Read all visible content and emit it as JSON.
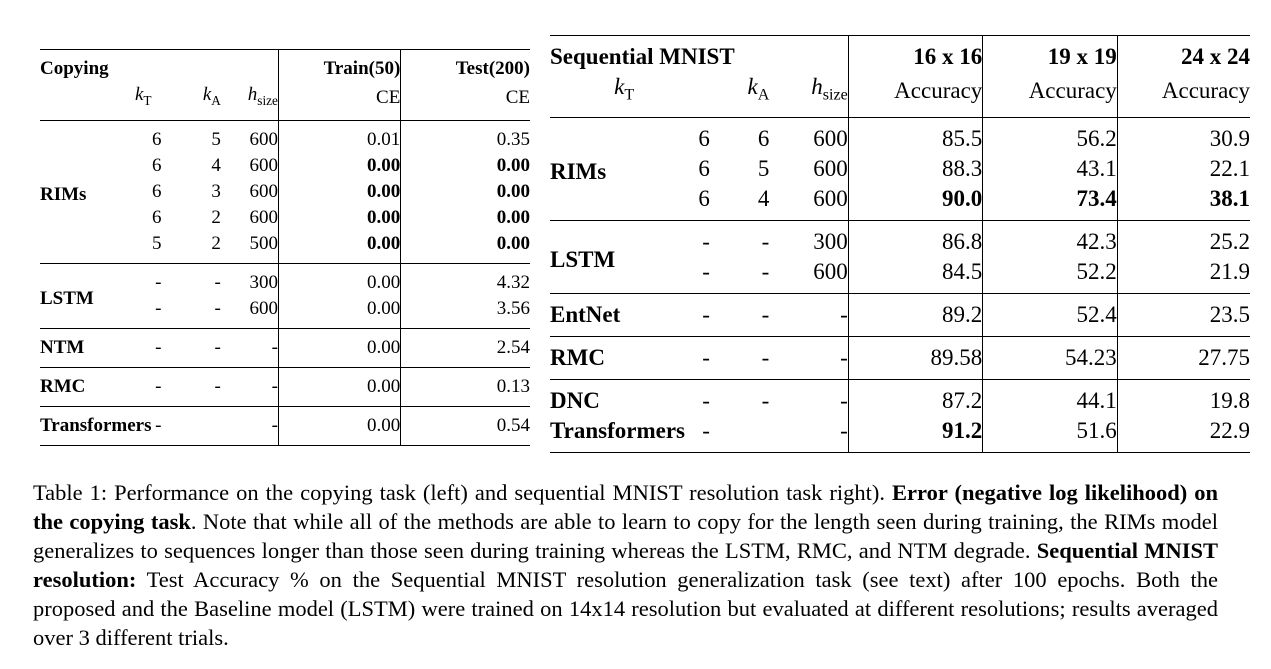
{
  "left_table": {
    "title": "Copying",
    "col_kt": "k",
    "col_kt_sub": "T",
    "col_ka": "k",
    "col_ka_sub": "A",
    "col_h": "h",
    "col_h_sub": "size",
    "train_label": "Train(50)",
    "test_label": "Test(200)",
    "metric": "CE",
    "groups": [
      {
        "name": "RIMs",
        "rows": [
          {
            "kt": "6",
            "ka": "5",
            "h": "600",
            "train": "0.01",
            "test": "0.35",
            "train_bold": false,
            "test_bold": false
          },
          {
            "kt": "6",
            "ka": "4",
            "h": "600",
            "train": "0.00",
            "test": "0.00",
            "train_bold": true,
            "test_bold": true
          },
          {
            "kt": "6",
            "ka": "3",
            "h": "600",
            "train": "0.00",
            "test": "0.00",
            "train_bold": true,
            "test_bold": true
          },
          {
            "kt": "6",
            "ka": "2",
            "h": "600",
            "train": "0.00",
            "test": "0.00",
            "train_bold": true,
            "test_bold": true
          },
          {
            "kt": "5",
            "ka": "2",
            "h": "500",
            "train": "0.00",
            "test": "0.00",
            "train_bold": true,
            "test_bold": true
          }
        ]
      },
      {
        "name": "LSTM",
        "rows": [
          {
            "kt": "-",
            "ka": "-",
            "h": "300",
            "train": "0.00",
            "test": "4.32"
          },
          {
            "kt": "-",
            "ka": "-",
            "h": "600",
            "train": "0.00",
            "test": "3.56"
          }
        ]
      },
      {
        "name": "NTM",
        "rows": [
          {
            "kt": "-",
            "ka": "-",
            "h": "-",
            "train": "0.00",
            "test": "2.54"
          }
        ]
      },
      {
        "name": "RMC",
        "rows": [
          {
            "kt": "-",
            "ka": "-",
            "h": "-",
            "train": "0.00",
            "test": "0.13"
          }
        ]
      },
      {
        "name": "Transformers",
        "rows": [
          {
            "kt": "-",
            "ka": "",
            "h": "-",
            "train": "0.00",
            "test": "0.54"
          }
        ]
      }
    ]
  },
  "right_table": {
    "title": "Sequential MNIST",
    "col_kt": "k",
    "col_kt_sub": "T",
    "col_ka": "k",
    "col_ka_sub": "A",
    "col_h": "h",
    "col_h_sub": "size",
    "res_headers": [
      "16 x 16",
      "19 x 19",
      "24 x 24"
    ],
    "metric": "Accuracy",
    "groups": [
      {
        "name": "RIMs",
        "rows": [
          {
            "kt": "6",
            "ka": "6",
            "h": "600",
            "v": [
              "85.5",
              "56.2",
              "30.9"
            ],
            "bold": [
              false,
              false,
              false
            ]
          },
          {
            "kt": "6",
            "ka": "5",
            "h": "600",
            "v": [
              "88.3",
              "43.1",
              "22.1"
            ],
            "bold": [
              false,
              false,
              false
            ]
          },
          {
            "kt": "6",
            "ka": "4",
            "h": "600",
            "v": [
              "90.0",
              "73.4",
              "38.1"
            ],
            "bold": [
              true,
              true,
              true
            ]
          }
        ]
      },
      {
        "name": "LSTM",
        "rows": [
          {
            "kt": "-",
            "ka": "-",
            "h": "300",
            "v": [
              "86.8",
              "42.3",
              "25.2"
            ]
          },
          {
            "kt": "-",
            "ka": "-",
            "h": "600",
            "v": [
              "84.5",
              "52.2",
              "21.9"
            ]
          }
        ]
      },
      {
        "name": "EntNet",
        "rows": [
          {
            "kt": "-",
            "ka": "-",
            "h": "-",
            "v": [
              "89.2",
              "52.4",
              "23.5"
            ]
          }
        ]
      },
      {
        "name": "RMC",
        "rows": [
          {
            "kt": "-",
            "ka": "-",
            "h": "-",
            "v": [
              "89.58",
              "54.23",
              "27.75"
            ]
          }
        ]
      },
      {
        "name": "DNC",
        "rows": [
          {
            "kt": "-",
            "ka": "-",
            "h": "-",
            "v": [
              "87.2",
              "44.1",
              "19.8"
            ]
          }
        ]
      },
      {
        "name": "Transformers",
        "rows": [
          {
            "kt": "-",
            "ka": "",
            "h": "-",
            "v": [
              "91.2",
              "51.6",
              "22.9"
            ],
            "bold": [
              true,
              false,
              false
            ]
          }
        ]
      }
    ]
  },
  "caption": {
    "p1": "Table 1: Performance on the copying task (left) and sequential MNIST resolution task right). ",
    "b1": "Error (negative log likelihood) on the copying task",
    "p2": ". Note that while all of the methods are able to learn to copy for the length seen during training, the RIMs model generalizes to sequences longer than those seen during training whereas the LSTM, RMC, and NTM degrade. ",
    "b2": "Sequential MNIST resolution:",
    "p3": " Test Accuracy % on the Sequential MNIST resolution generalization task (see text) after 100 epochs. Both the proposed and the Baseline model (LSTM) were trained on 14x14 resolution but evaluated at different resolutions; results averaged over 3 different trials."
  }
}
